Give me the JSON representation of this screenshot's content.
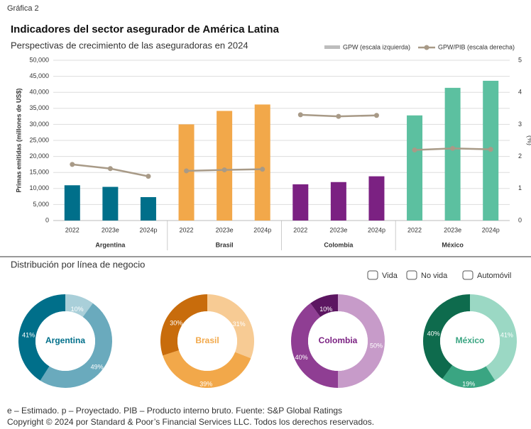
{
  "label": "Gráfica 2",
  "title": "Indicadores del sector asegurador de América Latina",
  "section_title": "Distribución por línea de negocio",
  "segment_legend": [
    "Vida",
    "No vida",
    "Automóvil"
  ],
  "footnotes": [
    "e – Estimado. p – Proyectado. PIB – Producto interno bruto.  Fuente: S&P Global Ratings",
    "Copyright © 2024 por Standard & Poor’s Financial Services LLC. Todos los derechos reservados."
  ],
  "chart_data": [
    {
      "type": "bar",
      "subtitle": "Perspectivas de crecimiento de las aseguradoras en 2024",
      "ylabel": "Primas emitidas (millones de US$)",
      "y2label": "(%)",
      "groups": [
        "Argentina",
        "Brasil",
        "Colombia",
        "México"
      ],
      "group_colors": [
        "#006f8a",
        "#f2a84a",
        "#7b2182",
        "#5cc0a0"
      ],
      "categories": [
        "2022",
        "2023e",
        "2024p",
        "2022",
        "2023e",
        "2024p",
        "2022",
        "2023e",
        "2024p",
        "2022",
        "2023e",
        "2024p"
      ],
      "series": [
        {
          "name": "GPW (escala izquierda)",
          "color": "#bdbdbd",
          "values": [
            11000,
            10500,
            7300,
            30000,
            34200,
            36200,
            11300,
            12000,
            13800,
            32800,
            41400,
            43600
          ]
        },
        {
          "name": "GPW/PIB (escala derecha)",
          "color": "#a89a87",
          "axis": "y2",
          "values": [
            1.75,
            1.62,
            1.38,
            1.55,
            1.58,
            1.6,
            3.3,
            3.25,
            3.28,
            2.2,
            2.25,
            2.22
          ]
        }
      ],
      "ylim": [
        0,
        50000
      ],
      "yticks": [
        0,
        {
          "value": 5000,
          "label": "5,000"
        },
        {
          "value": 10000,
          "label": "10,000"
        },
        {
          "value": 15000,
          "label": "15,000"
        },
        {
          "value": 20000,
          "label": "20,000"
        },
        {
          "value": 25000,
          "label": "25,000"
        },
        {
          "value": 30000,
          "label": "30,000"
        },
        {
          "value": 35000,
          "label": "35,000"
        },
        {
          "value": 40000,
          "label": "40,000"
        },
        {
          "value": 45000,
          "label": "45,000"
        },
        {
          "value": 50000,
          "label": "50,000"
        }
      ],
      "y2lim": [
        0,
        5
      ],
      "y2ticks": [
        0,
        1,
        2,
        3,
        4,
        5
      ],
      "grid": true
    },
    {
      "type": "pie",
      "title": "Argentina",
      "values": [
        10,
        49,
        41
      ],
      "value_labels": [
        "10%",
        "49%",
        "41%"
      ],
      "colors": [
        "#a9cfd9",
        "#6aaabd",
        "#006f8a"
      ],
      "title_color": "#006f8a"
    },
    {
      "type": "pie",
      "title": "Brasil",
      "values": [
        31,
        39,
        30
      ],
      "value_labels": [
        "31%",
        "39%",
        "30%"
      ],
      "colors": [
        "#f7cb94",
        "#f2a84a",
        "#c86c0c"
      ],
      "title_color": "#f2a84a"
    },
    {
      "type": "pie",
      "title": "Colombia",
      "values": [
        50,
        40,
        10
      ],
      "value_labels": [
        "50%",
        "40%",
        "10%"
      ],
      "colors": [
        "#c79bc9",
        "#8f3e93",
        "#5c1661"
      ],
      "title_color": "#7b2182"
    },
    {
      "type": "pie",
      "title": "México",
      "values": [
        41,
        19,
        40
      ],
      "value_labels": [
        "41%",
        "19%",
        "40%"
      ],
      "colors": [
        "#9bd8c4",
        "#3aa582",
        "#0e6b4d"
      ],
      "title_color": "#3aa582"
    }
  ]
}
